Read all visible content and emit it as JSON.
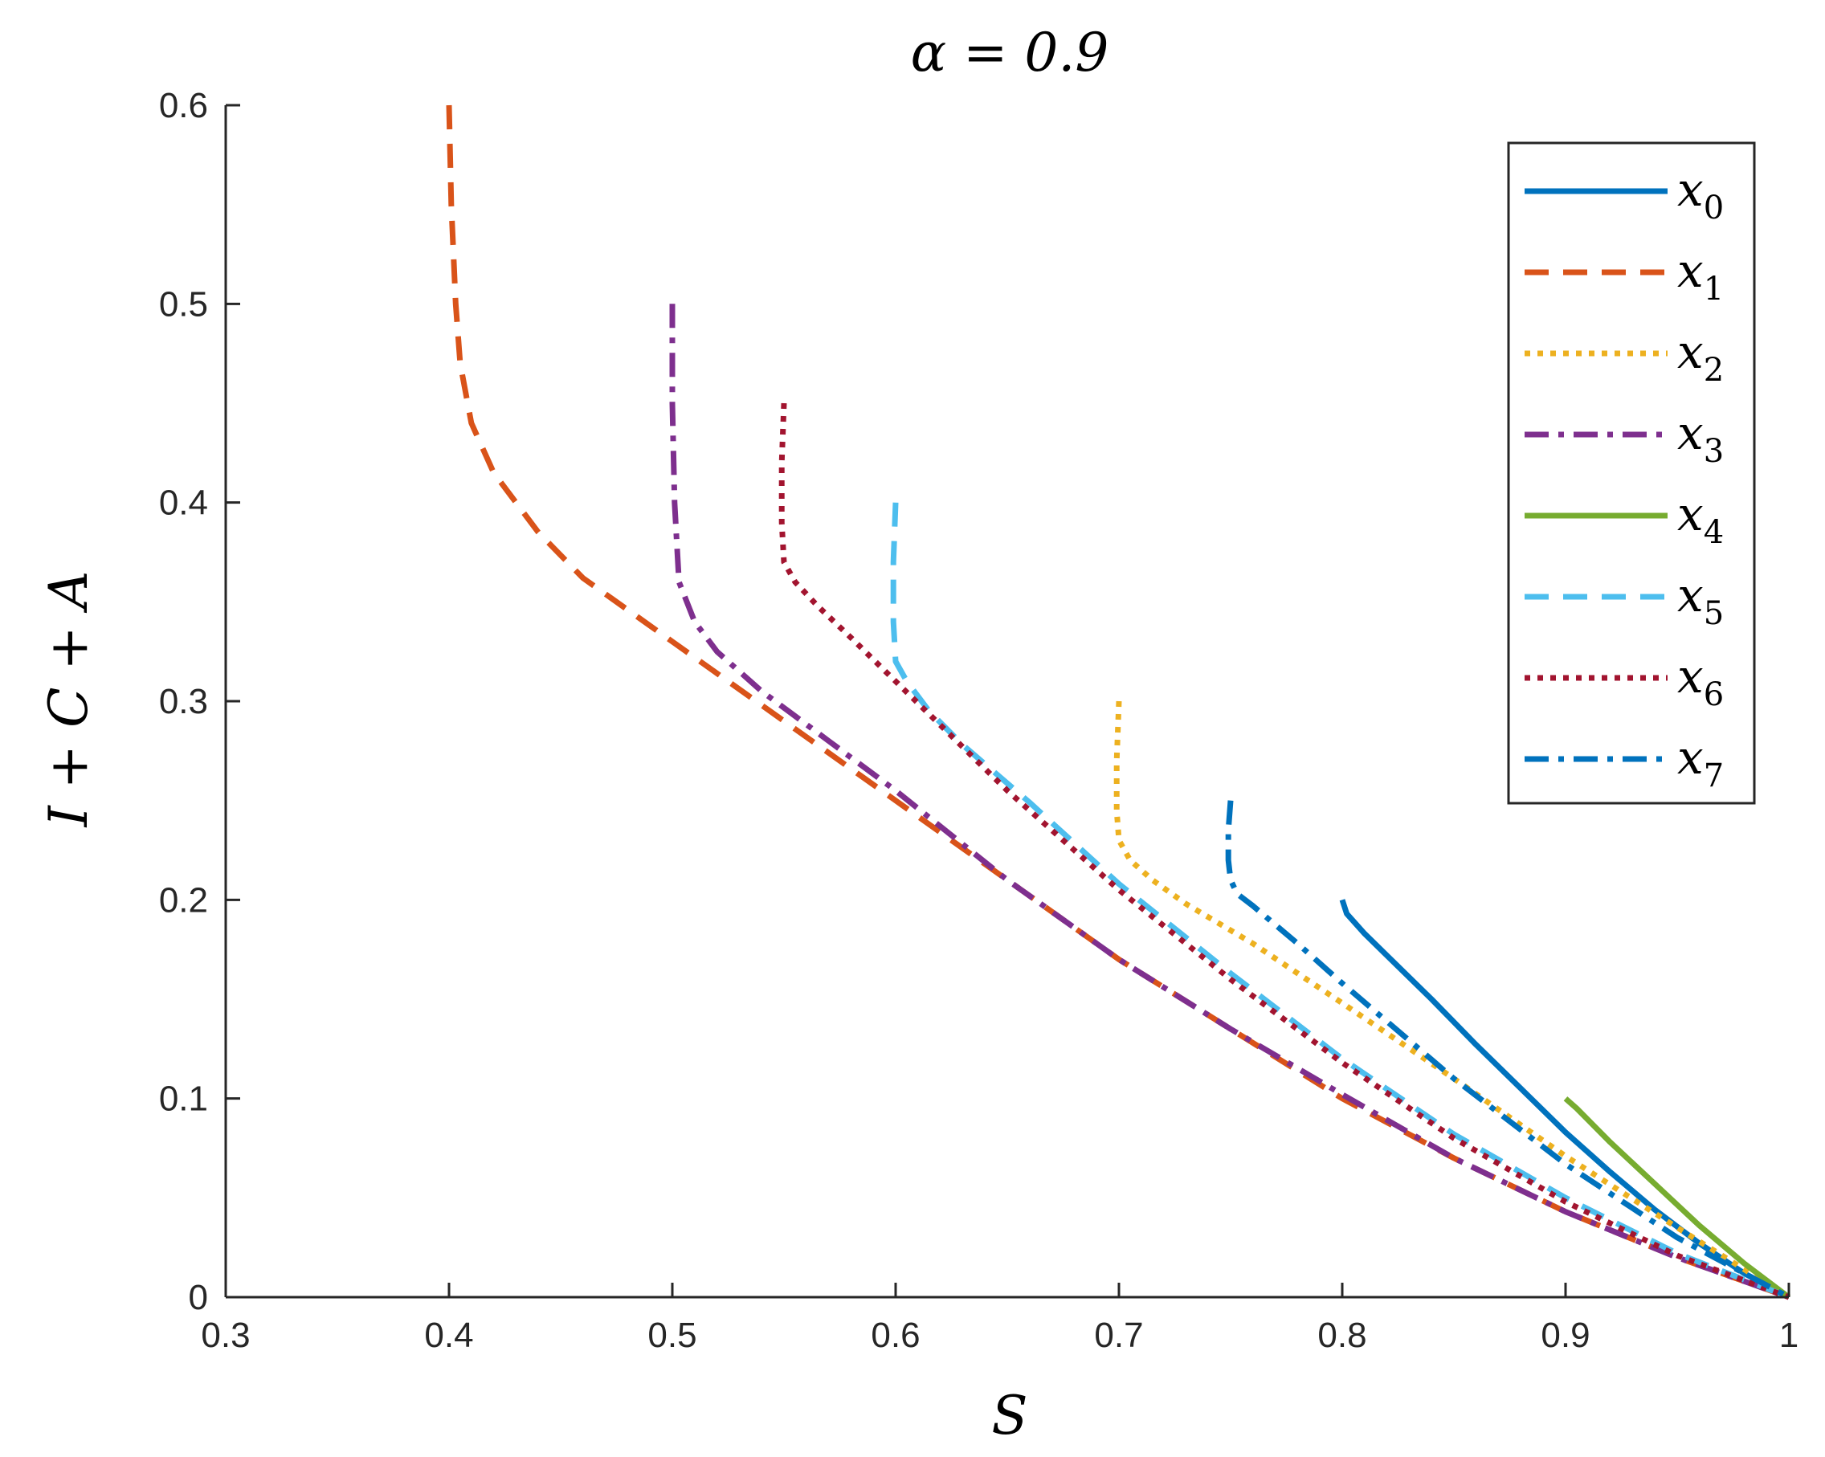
{
  "chart_data": {
    "type": "line",
    "title": "α = 0.9",
    "xlabel": "S",
    "ylabel": "I + C + A",
    "xlim": [
      0.3,
      1
    ],
    "ylim": [
      0,
      0.6
    ],
    "xticks": [
      "0.3",
      "0.4",
      "0.5",
      "0.6",
      "0.7",
      "0.8",
      "0.9",
      "1"
    ],
    "yticks": [
      "0",
      "0.1",
      "0.2",
      "0.3",
      "0.4",
      "0.5",
      "0.6"
    ],
    "grid": false,
    "legend_position": "top-right",
    "series": [
      {
        "name": "x0",
        "color": "#0072BD",
        "style": "solid",
        "x": [
          0.8,
          0.802,
          0.81,
          0.82,
          0.84,
          0.86,
          0.88,
          0.9,
          0.92,
          0.94,
          0.96,
          0.98,
          1.0
        ],
        "y": [
          0.2,
          0.193,
          0.183,
          0.172,
          0.15,
          0.127,
          0.105,
          0.083,
          0.063,
          0.044,
          0.027,
          0.012,
          0.0
        ]
      },
      {
        "name": "x1",
        "color": "#D95319",
        "style": "dashed",
        "x": [
          0.4,
          0.401,
          0.403,
          0.405,
          0.41,
          0.42,
          0.44,
          0.46,
          0.5,
          0.55,
          0.6,
          0.65,
          0.7,
          0.75,
          0.8,
          0.85,
          0.9,
          0.95,
          1.0
        ],
        "y": [
          0.6,
          0.55,
          0.5,
          0.47,
          0.44,
          0.415,
          0.385,
          0.362,
          0.33,
          0.29,
          0.25,
          0.21,
          0.17,
          0.135,
          0.1,
          0.07,
          0.043,
          0.02,
          0.0
        ]
      },
      {
        "name": "x2",
        "color": "#EDB120",
        "style": "dotted",
        "x": [
          0.7,
          0.699,
          0.699,
          0.7,
          0.705,
          0.715,
          0.73,
          0.76,
          0.8,
          0.85,
          0.9,
          0.95,
          1.0
        ],
        "y": [
          0.3,
          0.27,
          0.245,
          0.23,
          0.22,
          0.21,
          0.198,
          0.178,
          0.148,
          0.11,
          0.071,
          0.035,
          0.0
        ]
      },
      {
        "name": "x3",
        "color": "#7E2F8E",
        "style": "dashdot",
        "x": [
          0.5,
          0.5,
          0.501,
          0.503,
          0.51,
          0.52,
          0.54,
          0.57,
          0.6,
          0.65,
          0.7,
          0.75,
          0.8,
          0.85,
          0.9,
          0.95,
          1.0
        ],
        "y": [
          0.5,
          0.45,
          0.4,
          0.36,
          0.34,
          0.325,
          0.305,
          0.28,
          0.255,
          0.21,
          0.17,
          0.135,
          0.102,
          0.07,
          0.043,
          0.02,
          0.0
        ]
      },
      {
        "name": "x4",
        "color": "#77AC30",
        "style": "solid",
        "x": [
          0.9,
          0.905,
          0.92,
          0.94,
          0.96,
          0.98,
          1.0
        ],
        "y": [
          0.1,
          0.095,
          0.078,
          0.057,
          0.036,
          0.017,
          0.0
        ]
      },
      {
        "name": "x5",
        "color": "#4DBEEE",
        "style": "dashed",
        "x": [
          0.6,
          0.599,
          0.599,
          0.6,
          0.605,
          0.615,
          0.63,
          0.66,
          0.7,
          0.75,
          0.8,
          0.85,
          0.9,
          0.95,
          1.0
        ],
        "y": [
          0.4,
          0.37,
          0.34,
          0.32,
          0.31,
          0.295,
          0.278,
          0.249,
          0.208,
          0.163,
          0.12,
          0.082,
          0.05,
          0.022,
          0.0
        ]
      },
      {
        "name": "x6",
        "color": "#A2142F",
        "style": "dotted",
        "x": [
          0.55,
          0.549,
          0.549,
          0.55,
          0.555,
          0.565,
          0.58,
          0.6,
          0.65,
          0.7,
          0.75,
          0.8,
          0.85,
          0.9,
          0.95,
          1.0
        ],
        "y": [
          0.45,
          0.42,
          0.39,
          0.37,
          0.36,
          0.348,
          0.332,
          0.31,
          0.255,
          0.205,
          0.16,
          0.118,
          0.08,
          0.048,
          0.021,
          0.0
        ]
      },
      {
        "name": "x7",
        "color": "#0072BD",
        "style": "dashdot",
        "x": [
          0.75,
          0.749,
          0.749,
          0.75,
          0.753,
          0.76,
          0.78,
          0.8,
          0.85,
          0.9,
          0.95,
          1.0
        ],
        "y": [
          0.25,
          0.235,
          0.22,
          0.21,
          0.203,
          0.197,
          0.178,
          0.158,
          0.11,
          0.067,
          0.03,
          0.0
        ]
      }
    ]
  }
}
